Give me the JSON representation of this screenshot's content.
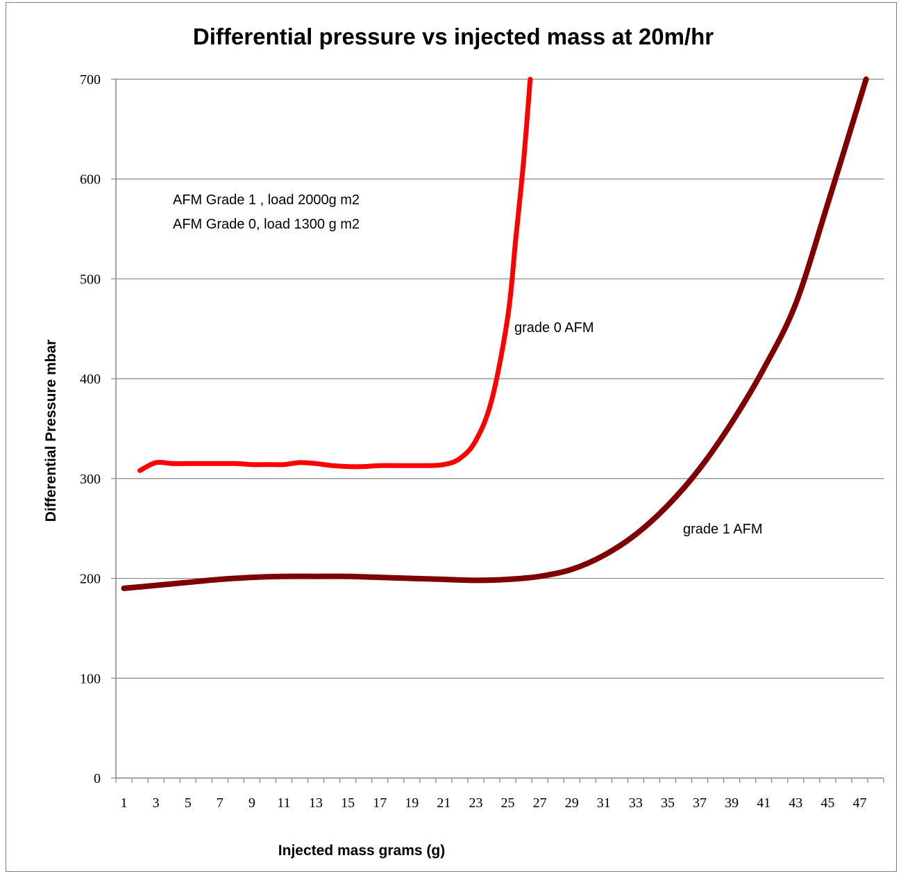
{
  "chart_data": {
    "type": "line",
    "title": "Differential pressure vs injected mass at 20m/hr",
    "xlabel": "Injected mass grams (g)",
    "ylabel": "Differential Pressure mbar",
    "ylim": [
      0,
      700
    ],
    "yticks": [
      0,
      100,
      200,
      300,
      400,
      500,
      600,
      700
    ],
    "xlim": [
      1,
      48
    ],
    "xticks": [
      1,
      3,
      5,
      7,
      9,
      11,
      13,
      15,
      17,
      19,
      21,
      23,
      25,
      27,
      29,
      31,
      33,
      35,
      37,
      39,
      41,
      43,
      45,
      47
    ],
    "grid": "horizontal",
    "legend": "none",
    "series": [
      {
        "name": "grade 0 AFM",
        "color": "#ff0000",
        "x": [
          2,
          3,
          4,
          5,
          6,
          7,
          8,
          9,
          10,
          11,
          12,
          13,
          14,
          15,
          16,
          17,
          18,
          19,
          20,
          21,
          22,
          23,
          24,
          25,
          25.5,
          26,
          26.4
        ],
        "y": [
          308,
          316,
          315,
          315,
          315,
          315,
          315,
          314,
          314,
          314,
          316,
          315,
          313,
          312,
          312,
          313,
          313,
          313,
          313,
          314,
          320,
          338,
          379,
          462,
          540,
          620,
          700
        ]
      },
      {
        "name": "grade 1 AFM",
        "color": "#7f0000",
        "x": [
          1,
          3,
          5,
          7,
          9,
          11,
          13,
          15,
          17,
          19,
          21,
          23,
          25,
          27,
          29,
          31,
          33,
          35,
          37,
          39,
          41,
          43,
          45,
          47.4
        ],
        "y": [
          190,
          193,
          196,
          199,
          201,
          202,
          202,
          202,
          201,
          200,
          199,
          198,
          199,
          202,
          209,
          223,
          244,
          273,
          310,
          356,
          410,
          475,
          575,
          700
        ]
      }
    ],
    "annotations": [
      "AFM Grade 1 , load 2000g m2",
      "AFM Grade 0, load 1300 g m2",
      "grade 0 AFM",
      "grade 1 AFM"
    ]
  }
}
